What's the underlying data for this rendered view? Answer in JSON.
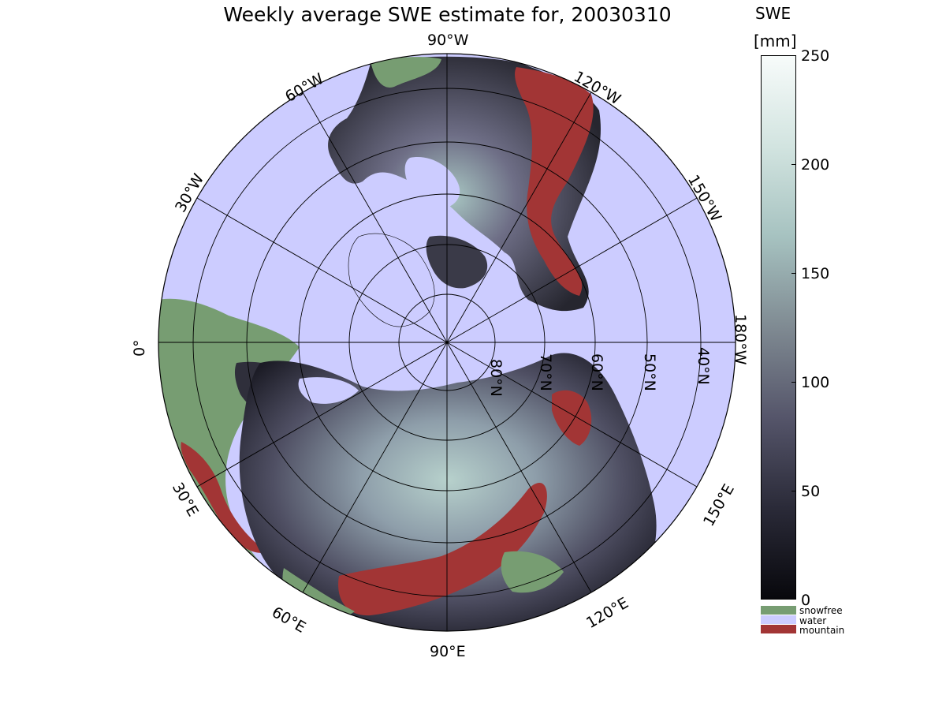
{
  "title": "Weekly average SWE estimate for, 20030310",
  "colorbar": {
    "label_line1": "SWE",
    "label_line2": "[mm]",
    "ticks": [
      "0",
      "50",
      "100",
      "150",
      "200",
      "250"
    ],
    "min": 0,
    "max": 250,
    "gradient": [
      "#08080c",
      "#2a2a38",
      "#55556a",
      "#7f8a92",
      "#a6c2c0",
      "#d2e4e0",
      "#f7fbfa"
    ]
  },
  "legend": [
    {
      "label": "snowfree",
      "color": "#779d72"
    },
    {
      "label": "water",
      "color": "#ccccff"
    },
    {
      "label": "mountain",
      "color": "#a23535"
    }
  ],
  "longitude_labels": [
    "90°W",
    "120°W",
    "150°W",
    "180°W",
    "150°E",
    "120°E",
    "90°E",
    "60°E",
    "30°E",
    "0°",
    "30°W",
    "60°W"
  ],
  "latitude_labels": [
    "80°N",
    "70°N",
    "60°N",
    "50°N",
    "40°N"
  ],
  "colors": {
    "water": "#ccccff",
    "snowfree": "#779d72",
    "mountain": "#a23535",
    "snow_dark": "#2b2b37",
    "snow_mid": "#5c5c72",
    "snow_light": "#a9c8c4"
  }
}
